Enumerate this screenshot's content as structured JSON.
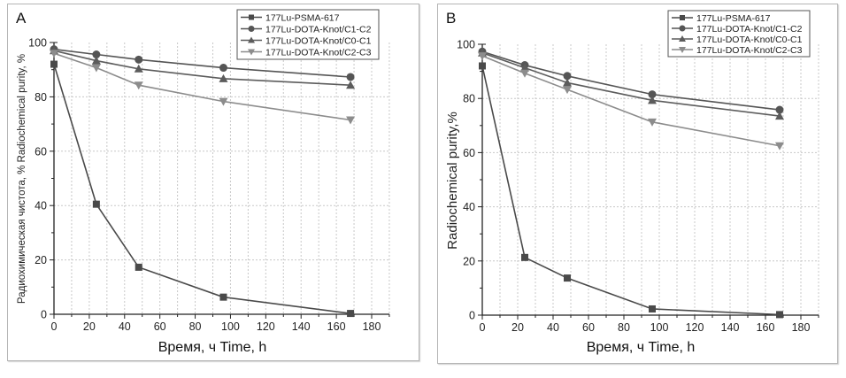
{
  "figure": {
    "panels": [
      "A",
      "B"
    ]
  },
  "chart_data": [
    {
      "type": "line",
      "panel_label": "A",
      "title": "",
      "xlabel": "Время, ч Time, h",
      "ylabel": "Радиохимическая чистота, % Radiochemical purity, %",
      "xlim": [
        0,
        190
      ],
      "ylim": [
        0,
        100
      ],
      "x_ticks": [
        "0",
        "20",
        "40",
        "60",
        "80",
        "100",
        "120",
        "140",
        "160",
        "180"
      ],
      "y_ticks": [
        "0",
        "20",
        "40",
        "60",
        "80",
        "100"
      ],
      "grid": true,
      "legend_position": "top-right",
      "x": [
        0,
        24,
        48,
        96,
        168
      ],
      "series": [
        {
          "name": "177Lu-PSMA-617",
          "marker": "square",
          "color": "#4a4a4a",
          "values": [
            92,
            40.5,
            17.3,
            6.3,
            0.3
          ]
        },
        {
          "name": "177Lu-DOTA-Knot/C1-C2",
          "marker": "circle",
          "color": "#555555",
          "values": [
            97.5,
            95.6,
            93.7,
            90.7,
            87.3
          ]
        },
        {
          "name": "177Lu-DOTA-Knot/C0-C1",
          "marker": "triangle-up",
          "color": "#5c5c5c",
          "values": [
            97,
            93.3,
            90.3,
            86.7,
            84.3
          ]
        },
        {
          "name": "177Lu-DOTA-Knot/C2-C3",
          "marker": "triangle-down",
          "color": "#8c8c8c",
          "values": [
            96,
            90.7,
            84.3,
            78.3,
            71.5
          ]
        }
      ]
    },
    {
      "type": "line",
      "panel_label": "B",
      "title": "",
      "xlabel": "Время, ч Time, h",
      "ylabel": "Radiochemical purity,%",
      "xlim": [
        0,
        190
      ],
      "ylim": [
        0,
        100
      ],
      "x_ticks": [
        "0",
        "20",
        "40",
        "60",
        "80",
        "100",
        "120",
        "140",
        "160",
        "180"
      ],
      "y_ticks": [
        "0",
        "20",
        "40",
        "60",
        "80",
        "100"
      ],
      "grid": true,
      "legend_position": "top-right",
      "x": [
        0,
        24,
        48,
        96,
        168
      ],
      "series": [
        {
          "name": "177Lu-PSMA-617",
          "marker": "square",
          "color": "#4a4a4a",
          "values": [
            92,
            21.3,
            13.7,
            2.3,
            0.2
          ]
        },
        {
          "name": "177Lu-DOTA-Knot/C1-C2",
          "marker": "circle",
          "color": "#555555",
          "values": [
            97.3,
            92.3,
            88.3,
            81.5,
            75.8
          ]
        },
        {
          "name": "177Lu-DOTA-Knot/C0-C1",
          "marker": "triangle-up",
          "color": "#5c5c5c",
          "values": [
            96.8,
            91.3,
            85.8,
            79.3,
            73.5
          ]
        },
        {
          "name": "177Lu-DOTA-Knot/C2-C3",
          "marker": "triangle-down",
          "color": "#8c8c8c",
          "values": [
            95.7,
            89.3,
            83.3,
            71.3,
            62.5
          ]
        }
      ]
    }
  ]
}
